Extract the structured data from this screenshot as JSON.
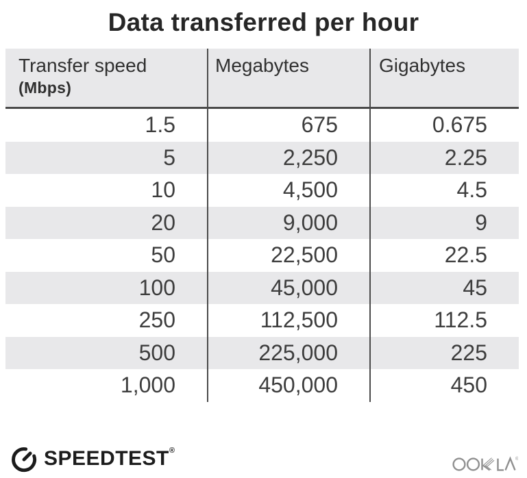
{
  "title": "Data transferred per hour",
  "table": {
    "columns": [
      {
        "label": "Transfer speed",
        "sublabel": "(Mbps)"
      },
      {
        "label": "Megabytes"
      },
      {
        "label": "Gigabytes"
      }
    ],
    "rows": [
      [
        "1.5",
        "675",
        "0.675"
      ],
      [
        "5",
        "2,250",
        "2.25"
      ],
      [
        "10",
        "4,500",
        "4.5"
      ],
      [
        "20",
        "9,000",
        "9"
      ],
      [
        "50",
        "22,500",
        "22.5"
      ],
      [
        "100",
        "45,000",
        "45"
      ],
      [
        "250",
        "112,500",
        "112.5"
      ],
      [
        "500",
        "225,000",
        "225"
      ],
      [
        "1,000",
        "450,000",
        "450"
      ]
    ]
  },
  "chart_data": {
    "type": "table",
    "title": "Data transferred per hour",
    "columns": [
      "Transfer speed (Mbps)",
      "Megabytes",
      "Gigabytes"
    ],
    "rows": [
      [
        1.5,
        675,
        0.675
      ],
      [
        5,
        2250,
        2.25
      ],
      [
        10,
        4500,
        4.5
      ],
      [
        20,
        9000,
        9
      ],
      [
        50,
        22500,
        22.5
      ],
      [
        100,
        45000,
        45
      ],
      [
        250,
        112500,
        112.5
      ],
      [
        500,
        225000,
        225
      ],
      [
        1000,
        450000,
        450
      ]
    ],
    "layout": {
      "striped_rows": true,
      "stripe_color": "#e8e8ea",
      "column_dividers": true,
      "value_alignment": "right"
    }
  },
  "footer": {
    "speedtest_label": "SPEEDTEST",
    "speedtest_registered": "®",
    "ookla_label": "OOKLA",
    "ookla_registered": "®"
  },
  "colors": {
    "background": "#ffffff",
    "stripe": "#e8e8ea",
    "divider": "#4a4a4a",
    "title_text": "#262626",
    "cell_text": "#3d3d3d",
    "speedtest_black": "#1c1c1c",
    "ookla_gray": "#8f8f8f"
  }
}
